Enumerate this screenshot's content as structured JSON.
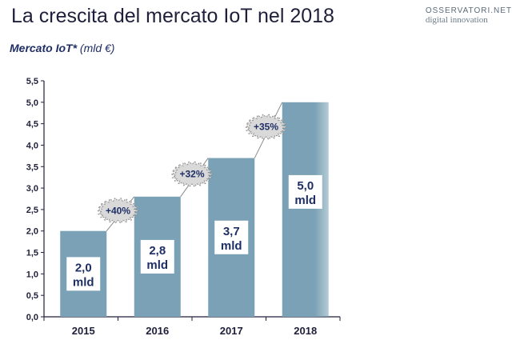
{
  "header": {
    "title": "La crescita del mercato IoT nel 2018",
    "logo_line1": "OSSERVATORI.NET",
    "logo_line2": "digital innovation"
  },
  "chart_data": {
    "type": "bar",
    "title": "Mercato IoT*",
    "unit": "(mld €)",
    "categories": [
      "2015",
      "2016",
      "2017",
      "2018"
    ],
    "values": [
      2.0,
      2.8,
      3.7,
      5.0
    ],
    "data_labels": [
      [
        "2,0",
        "mld"
      ],
      [
        "2,8",
        "mld"
      ],
      [
        "3,7",
        "mld"
      ],
      [
        "5,0",
        "mld"
      ]
    ],
    "growth_labels": [
      "+40%",
      "+32%",
      "+35%"
    ],
    "ylim": [
      0,
      5.5
    ],
    "yticks": [
      0,
      0.5,
      1,
      1.5,
      2,
      2.5,
      3,
      3.5,
      4,
      4.5,
      5,
      5.5
    ],
    "ytick_labels": [
      "0,0",
      "0,5",
      "1,0",
      "1,5",
      "2,0",
      "2,5",
      "3,0",
      "3,5",
      "4,0",
      "4,5",
      "5,0",
      "5,5"
    ],
    "bar_color": "#7aa1b5",
    "badge_color": "#d9d9d9",
    "grid": false
  }
}
